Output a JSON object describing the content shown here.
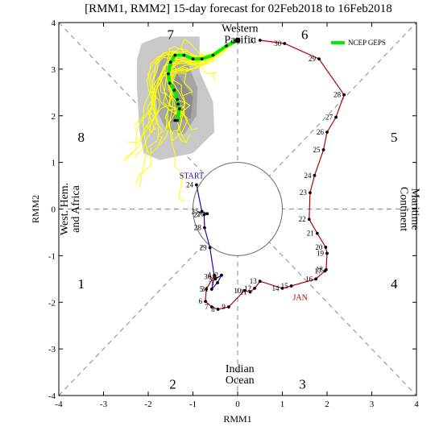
{
  "chart_data": {
    "type": "scatter",
    "title": "[RMM1, RMM2] 15-day forecast for 02Feb2018 to 16Feb2018",
    "xlabel": "RMM1",
    "ylabel": "RMM2",
    "xlim": [
      -4,
      4
    ],
    "ylim": [
      -4,
      4
    ],
    "xticks": [
      "-4",
      "-3",
      "-2",
      "-1",
      "0",
      "1",
      "2",
      "3",
      "4"
    ],
    "yticks": [
      "-4",
      "-3",
      "-2",
      "-1",
      "0",
      "1",
      "2",
      "3",
      "4"
    ],
    "unit_circle_radius": 1,
    "phases": [
      {
        "label": "1",
        "x": -3.5,
        "y": -1.6
      },
      {
        "label": "2",
        "x": -1.45,
        "y": -3.75
      },
      {
        "label": "3",
        "x": 1.45,
        "y": -3.75
      },
      {
        "label": "4",
        "x": 3.5,
        "y": -1.6
      },
      {
        "label": "5",
        "x": 3.5,
        "y": 1.55
      },
      {
        "label": "6",
        "x": 1.5,
        "y": 3.75
      },
      {
        "label": "7",
        "x": -1.5,
        "y": 3.75
      },
      {
        "label": "8",
        "x": -3.5,
        "y": 1.55
      }
    ],
    "regions": [
      {
        "lines": [
          "Western",
          "Pacific"
        ],
        "x": 0.05,
        "y": 3.75,
        "rotate": 0
      },
      {
        "lines": [
          "Indian",
          "Ocean"
        ],
        "x": 0.05,
        "y": -3.55,
        "rotate": 0
      },
      {
        "lines": [
          "Maritime",
          "Continent"
        ],
        "x": 3.85,
        "y": 0.0,
        "rotate": 90
      },
      {
        "lines": [
          "West. Hem.",
          "and Africa"
        ],
        "x": -3.75,
        "y": 0.0,
        "rotate": -90
      }
    ],
    "start_label": "START",
    "month_label": "JAN",
    "observed_color": "#b30000",
    "start_color": "#330099",
    "forecast_color": "#00ee00",
    "ensemble_color": "#ffff00",
    "legend": {
      "label": "NCEP GEPS",
      "position": "top-right"
    },
    "observed_jan": [
      {
        "day": "4",
        "x": -0.52,
        "y": -1.42
      },
      {
        "day": "5",
        "x": -0.7,
        "y": -1.72
      },
      {
        "day": "6",
        "x": -0.72,
        "y": -1.98
      },
      {
        "day": "7",
        "x": -0.58,
        "y": -2.1
      },
      {
        "day": "8",
        "x": -0.44,
        "y": -2.15
      },
      {
        "day": "9",
        "x": -0.2,
        "y": -2.1
      },
      {
        "day": "10",
        "x": 0.15,
        "y": -1.75
      },
      {
        "day": "11",
        "x": 0.28,
        "y": -1.78
      },
      {
        "day": "12",
        "x": 0.38,
        "y": -1.7
      },
      {
        "day": "13",
        "x": 0.5,
        "y": -1.55
      },
      {
        "day": "14",
        "x": 1.0,
        "y": -1.7
      },
      {
        "day": "15",
        "x": 1.2,
        "y": -1.65
      },
      {
        "day": "16",
        "x": 1.75,
        "y": -1.5
      },
      {
        "day": "17",
        "x": 1.95,
        "y": -1.33
      },
      {
        "day": "18",
        "x": 1.98,
        "y": -1.3
      },
      {
        "day": "19",
        "x": 2.0,
        "y": -0.95
      },
      {
        "day": "20",
        "x": 1.97,
        "y": -0.82
      },
      {
        "day": "21",
        "x": 1.78,
        "y": -0.52
      },
      {
        "day": "22",
        "x": 1.6,
        "y": -0.22
      },
      {
        "day": "23",
        "x": 1.62,
        "y": 0.35
      },
      {
        "day": "24",
        "x": 1.72,
        "y": 0.72
      },
      {
        "day": "25",
        "x": 1.92,
        "y": 1.27
      },
      {
        "day": "26",
        "x": 2.0,
        "y": 1.65
      },
      {
        "day": "27",
        "x": 2.2,
        "y": 1.97
      },
      {
        "day": "28",
        "x": 2.38,
        "y": 2.45
      },
      {
        "day": "29",
        "x": 1.82,
        "y": 3.22
      },
      {
        "day": "30",
        "x": 1.05,
        "y": 3.55
      },
      {
        "day": "31",
        "x": 0.5,
        "y": 3.62
      }
    ],
    "observed_dec": [
      {
        "day": "24",
        "x": -0.92,
        "y": 0.52
      },
      {
        "day": "25",
        "x": -0.8,
        "y": -0.05
      },
      {
        "day": "26",
        "x": -0.68,
        "y": -0.1
      },
      {
        "day": "27",
        "x": -0.75,
        "y": -0.12
      },
      {
        "day": "28",
        "x": -0.74,
        "y": -0.4
      },
      {
        "day": "29",
        "x": -0.62,
        "y": -0.83
      },
      {
        "day": "30",
        "x": -0.52,
        "y": -1.45
      },
      {
        "day": "31",
        "x": -0.58,
        "y": -1.72
      },
      {
        "day": "1",
        "x": -0.45,
        "y": -1.58
      },
      {
        "day": "2",
        "x": -0.36,
        "y": -1.42
      },
      {
        "day": "3",
        "x": -0.5,
        "y": -1.5
      }
    ],
    "forecast_mean": [
      {
        "x": 0.0,
        "y": 3.62
      },
      {
        "x": -0.25,
        "y": 3.5
      },
      {
        "x": -0.55,
        "y": 3.3
      },
      {
        "x": -0.8,
        "y": 3.22
      },
      {
        "x": -1.0,
        "y": 3.22
      },
      {
        "x": -1.2,
        "y": 3.3
      },
      {
        "x": -1.4,
        "y": 3.3
      },
      {
        "x": -1.5,
        "y": 3.15
      },
      {
        "x": -1.55,
        "y": 2.9
      },
      {
        "x": -1.52,
        "y": 2.7
      },
      {
        "x": -1.42,
        "y": 2.55
      },
      {
        "x": -1.35,
        "y": 2.35
      },
      {
        "x": -1.33,
        "y": 2.25
      },
      {
        "x": -1.3,
        "y": 2.15
      },
      {
        "x": -1.35,
        "y": 1.9
      },
      {
        "x": -1.4,
        "y": 1.9
      }
    ],
    "spread_outer": [
      {
        "x": -2.15,
        "y": 3.55
      },
      {
        "x": -1.75,
        "y": 3.7
      },
      {
        "x": -0.85,
        "y": 3.7
      },
      {
        "x": -0.85,
        "y": 2.95
      },
      {
        "x": -0.55,
        "y": 2.3
      },
      {
        "x": -0.52,
        "y": 1.65
      },
      {
        "x": -1.0,
        "y": 1.2
      },
      {
        "x": -1.75,
        "y": 1.05
      },
      {
        "x": -2.1,
        "y": 1.2
      },
      {
        "x": -2.2,
        "y": 1.7
      },
      {
        "x": -2.25,
        "y": 2.6
      },
      {
        "x": -2.25,
        "y": 3.2
      }
    ],
    "spread_inner": [
      {
        "x": -1.55,
        "y": 3.4
      },
      {
        "x": -1.1,
        "y": 3.1
      },
      {
        "x": -0.9,
        "y": 2.6
      },
      {
        "x": -0.92,
        "y": 2.0
      },
      {
        "x": -1.2,
        "y": 1.6
      },
      {
        "x": -1.6,
        "y": 1.7
      },
      {
        "x": -1.8,
        "y": 2.1
      },
      {
        "x": -1.85,
        "y": 2.8
      },
      {
        "x": -1.7,
        "y": 3.25
      }
    ],
    "spread_core": [
      {
        "x": -1.35,
        "y": 2.9
      },
      {
        "x": -1.0,
        "y": 2.4
      },
      {
        "x": -1.05,
        "y": 1.95
      },
      {
        "x": -1.5,
        "y": 1.85
      },
      {
        "x": -1.6,
        "y": 2.4
      }
    ]
  }
}
